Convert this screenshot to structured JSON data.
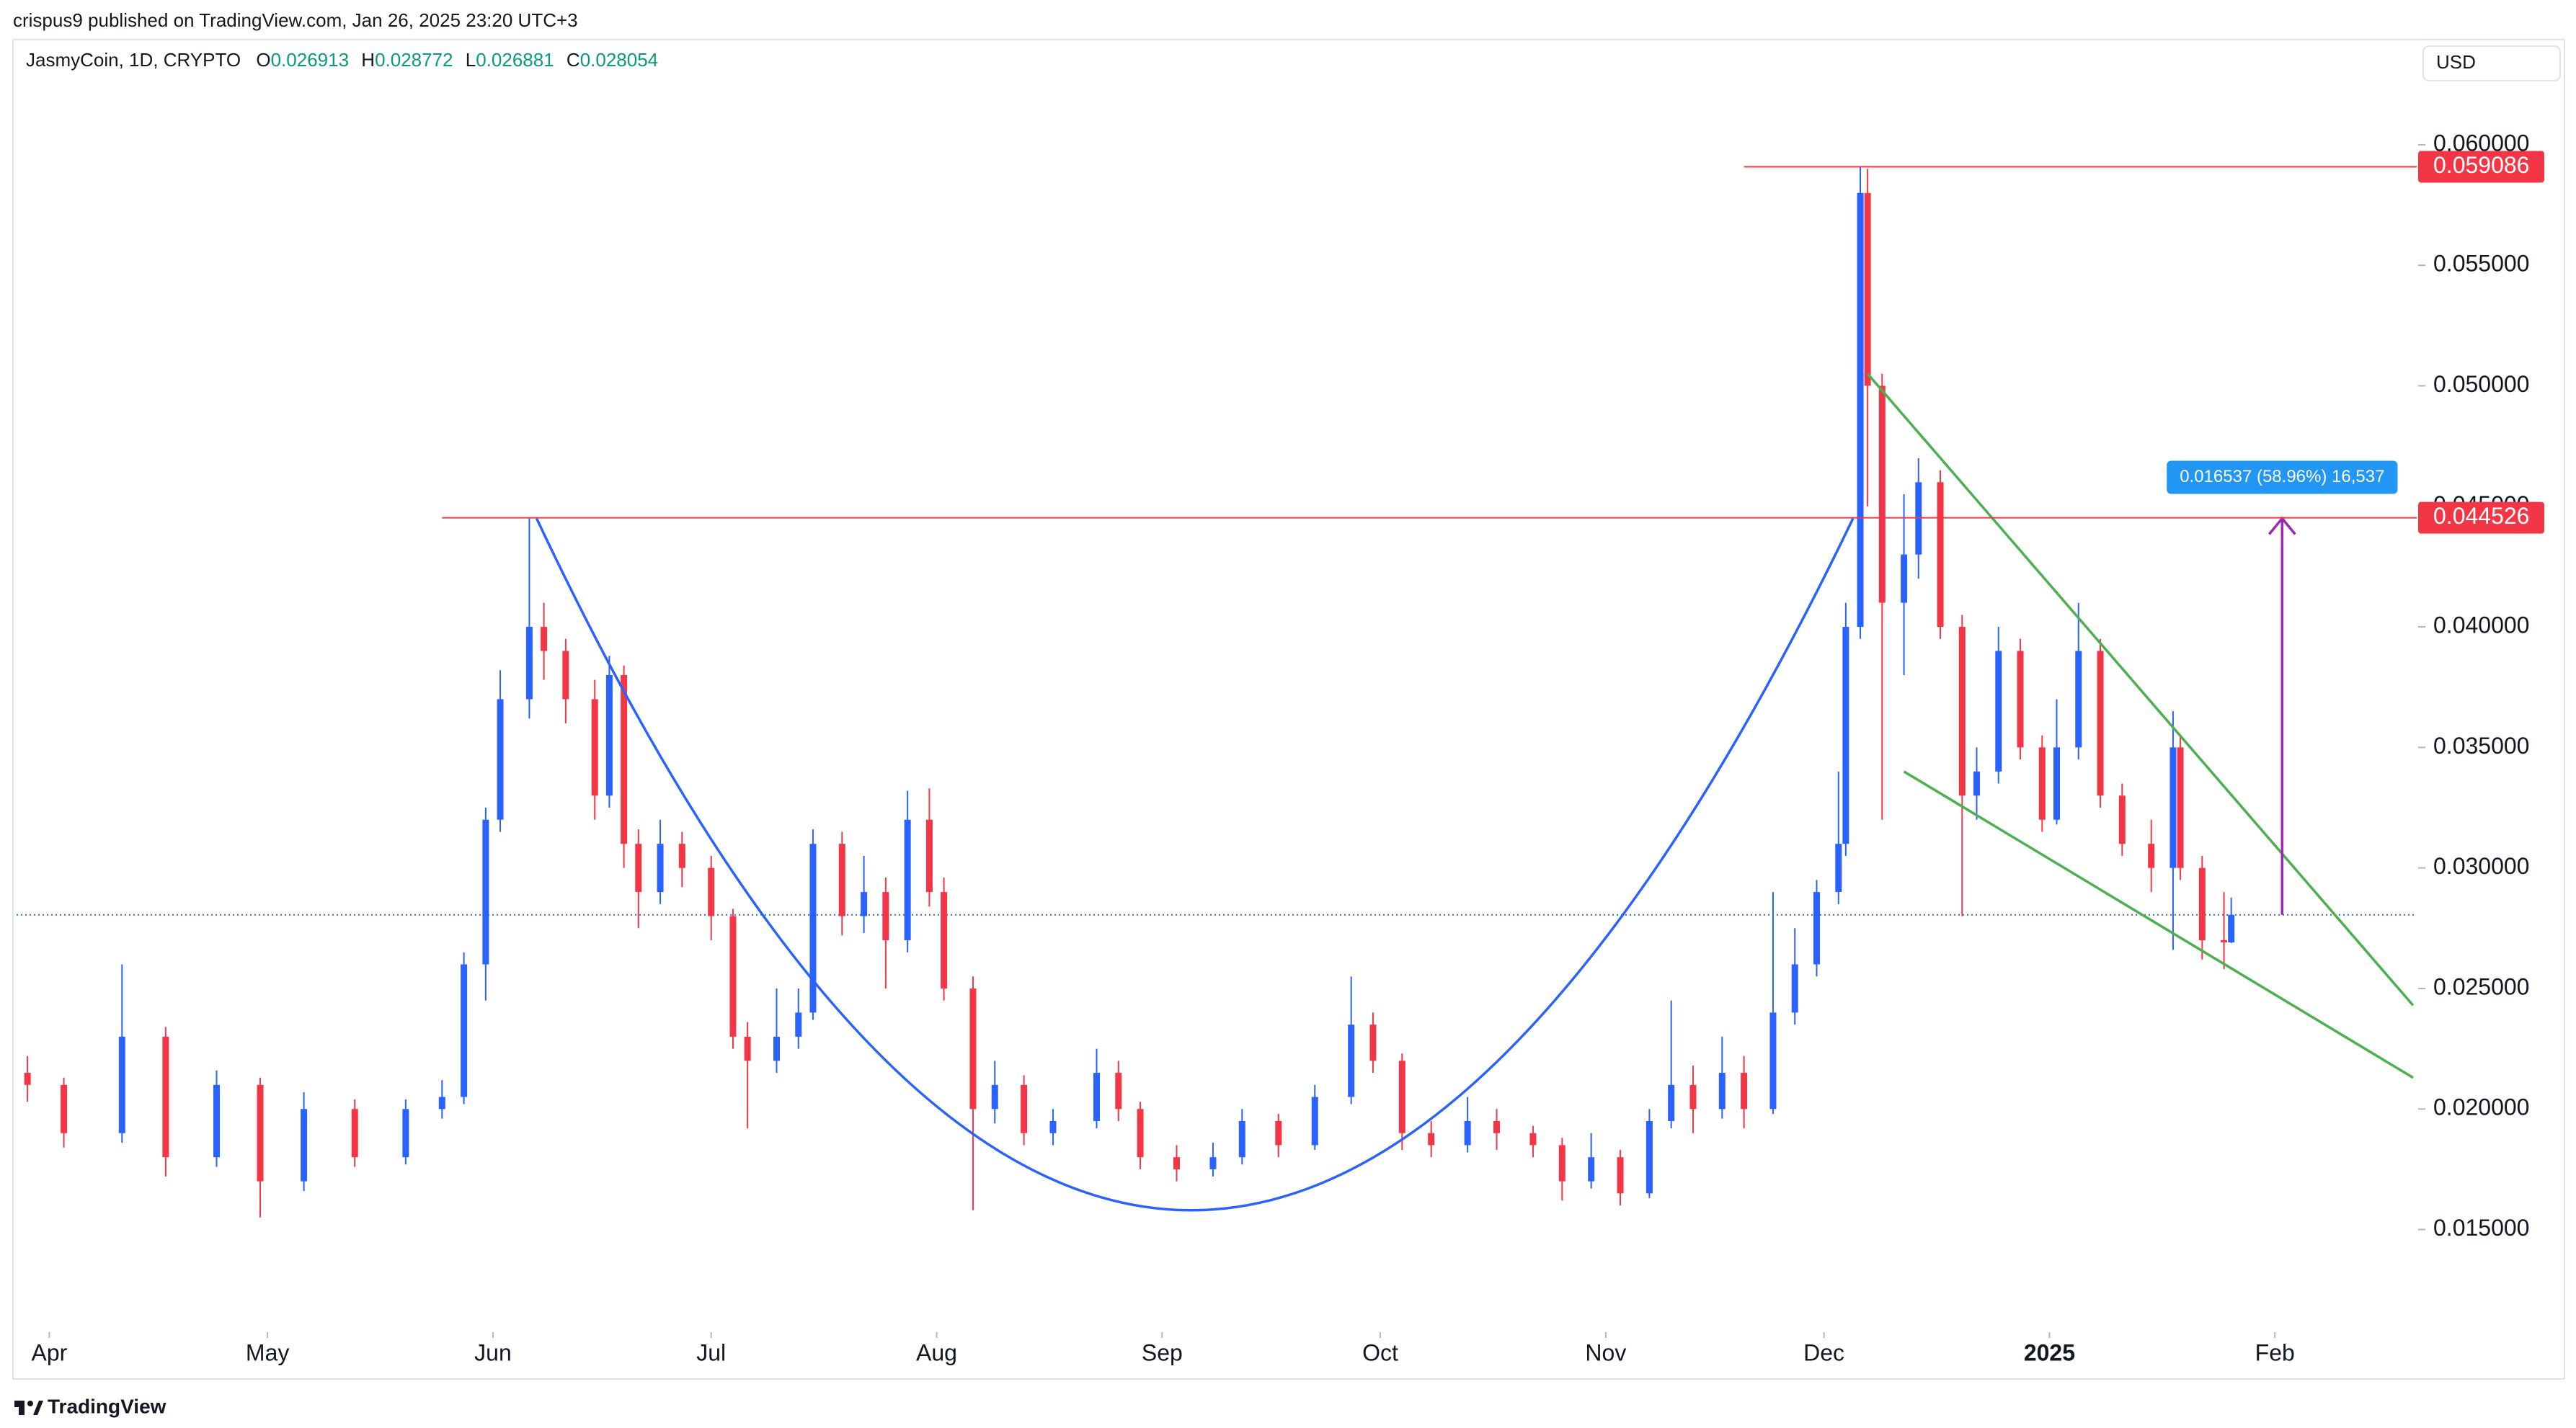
{
  "header": {
    "publisher": "crispus9 published on TradingView.com, Jan 26, 2025 23:20 UTC+3",
    "ohlc_labels": [
      "O",
      "H",
      "L",
      "C"
    ],
    "footer": "TradingView"
  },
  "chart_data": {
    "type": "candlestick",
    "title": "JasmyCoin, 1D, CRYPTO",
    "currency": "USD",
    "up_color": "#2962ff",
    "down_color": "#f23645",
    "x": [
      -3,
      2,
      10,
      16,
      23,
      29,
      35,
      42,
      49,
      54,
      57,
      60,
      62,
      66,
      68,
      71,
      75,
      77,
      79,
      81,
      84,
      87,
      91,
      94,
      96,
      100,
      103,
      105,
      109,
      112,
      115,
      118,
      121,
      123,
      127,
      130,
      134,
      138,
      144,
      147,
      150,
      155,
      160,
      164,
      169,
      174,
      179,
      182,
      186,
      190,
      195,
      199,
      204,
      208,
      212,
      216,
      220,
      223,
      226,
      230,
      233,
      237,
      240,
      243,
      246,
      247,
      249,
      250,
      252,
      255,
      257,
      260,
      263,
      265,
      268,
      271,
      274,
      276,
      279,
      282,
      285,
      289,
      292,
      293,
      296,
      299,
      300
    ],
    "open": [
      0.0215,
      0.021,
      0.019,
      0.023,
      0.018,
      0.021,
      0.017,
      0.02,
      0.018,
      0.02,
      0.0205,
      0.026,
      0.032,
      0.037,
      0.04,
      0.039,
      0.037,
      0.033,
      0.038,
      0.031,
      0.029,
      0.031,
      0.03,
      0.028,
      0.023,
      0.022,
      0.023,
      0.024,
      0.031,
      0.028,
      0.029,
      0.027,
      0.032,
      0.029,
      0.025,
      0.02,
      0.021,
      0.019,
      0.0195,
      0.0215,
      0.02,
      0.018,
      0.0175,
      0.018,
      0.0195,
      0.0185,
      0.0205,
      0.0235,
      0.022,
      0.019,
      0.0185,
      0.0195,
      0.019,
      0.0185,
      0.017,
      0.018,
      0.0165,
      0.0195,
      0.021,
      0.02,
      0.0215,
      0.02,
      0.024,
      0.026,
      0.029,
      0.031,
      0.04,
      0.058,
      0.05,
      0.041,
      0.043,
      0.046,
      0.04,
      0.033,
      0.034,
      0.039,
      0.035,
      0.032,
      0.035,
      0.039,
      0.033,
      0.031,
      0.03,
      0.035,
      0.03,
      0.027,
      0.026913
    ],
    "high": [
      0.0222,
      0.0213,
      0.026,
      0.0234,
      0.0216,
      0.0213,
      0.0207,
      0.0204,
      0.0204,
      0.0212,
      0.0265,
      0.0325,
      0.0382,
      0.0445,
      0.041,
      0.0395,
      0.0378,
      0.0388,
      0.0384,
      0.0316,
      0.032,
      0.0315,
      0.0305,
      0.0283,
      0.0236,
      0.025,
      0.025,
      0.0316,
      0.0315,
      0.0305,
      0.0296,
      0.0332,
      0.0333,
      0.0296,
      0.0255,
      0.022,
      0.0214,
      0.02,
      0.0225,
      0.022,
      0.0203,
      0.0185,
      0.0186,
      0.02,
      0.0198,
      0.021,
      0.0255,
      0.024,
      0.0223,
      0.0195,
      0.0205,
      0.02,
      0.0193,
      0.0188,
      0.019,
      0.0183,
      0.02,
      0.0245,
      0.0218,
      0.023,
      0.0222,
      0.029,
      0.0275,
      0.0295,
      0.034,
      0.041,
      0.0591,
      0.059,
      0.0505,
      0.0455,
      0.047,
      0.0465,
      0.0405,
      0.035,
      0.04,
      0.0395,
      0.0355,
      0.037,
      0.041,
      0.0395,
      0.0335,
      0.032,
      0.0365,
      0.0355,
      0.0305,
      0.029,
      0.028772
    ],
    "low": [
      0.0203,
      0.0184,
      0.0186,
      0.0172,
      0.0176,
      0.0155,
      0.0166,
      0.0176,
      0.0177,
      0.0196,
      0.0202,
      0.0245,
      0.0315,
      0.0362,
      0.0378,
      0.036,
      0.032,
      0.0325,
      0.03,
      0.0275,
      0.0285,
      0.0292,
      0.027,
      0.0225,
      0.0192,
      0.0215,
      0.0225,
      0.0237,
      0.0272,
      0.0273,
      0.025,
      0.0265,
      0.0284,
      0.0245,
      0.0158,
      0.0194,
      0.0185,
      0.0185,
      0.0192,
      0.0195,
      0.0175,
      0.017,
      0.0172,
      0.0177,
      0.018,
      0.0183,
      0.0202,
      0.0215,
      0.0183,
      0.018,
      0.0182,
      0.0183,
      0.018,
      0.0162,
      0.0167,
      0.016,
      0.0163,
      0.0192,
      0.019,
      0.0196,
      0.0192,
      0.0198,
      0.0235,
      0.0255,
      0.0285,
      0.0305,
      0.0395,
      0.045,
      0.032,
      0.038,
      0.042,
      0.0395,
      0.028,
      0.032,
      0.0335,
      0.0345,
      0.0315,
      0.0318,
      0.0345,
      0.0325,
      0.0305,
      0.029,
      0.0266,
      0.0295,
      0.0262,
      0.0258,
      0.026881
    ],
    "close": [
      0.021,
      0.019,
      0.023,
      0.018,
      0.021,
      0.017,
      0.02,
      0.018,
      0.02,
      0.0205,
      0.026,
      0.032,
      0.037,
      0.04,
      0.039,
      0.037,
      0.033,
      0.038,
      0.031,
      0.029,
      0.031,
      0.03,
      0.028,
      0.023,
      0.022,
      0.023,
      0.024,
      0.031,
      0.028,
      0.029,
      0.027,
      0.032,
      0.029,
      0.025,
      0.02,
      0.021,
      0.019,
      0.0195,
      0.0215,
      0.02,
      0.018,
      0.0175,
      0.018,
      0.0195,
      0.0185,
      0.0205,
      0.0235,
      0.022,
      0.019,
      0.0185,
      0.0195,
      0.019,
      0.0185,
      0.017,
      0.018,
      0.0165,
      0.0195,
      0.021,
      0.02,
      0.0215,
      0.02,
      0.024,
      0.026,
      0.029,
      0.031,
      0.04,
      0.058,
      0.05,
      0.041,
      0.043,
      0.046,
      0.04,
      0.033,
      0.034,
      0.039,
      0.035,
      0.032,
      0.035,
      0.039,
      0.033,
      0.031,
      0.03,
      0.035,
      0.03,
      0.027,
      0.026913,
      0.028054
    ],
    "xlim": [
      -4.5,
      325.5
    ],
    "ylim": [
      0.0114,
      0.0643
    ],
    "xticks": [
      {
        "value": 0,
        "label": "Apr"
      },
      {
        "value": 30,
        "label": "May"
      },
      {
        "value": 61,
        "label": "Jun"
      },
      {
        "value": 91,
        "label": "Jul"
      },
      {
        "value": 122,
        "label": "Aug"
      },
      {
        "value": 153,
        "label": "Sep"
      },
      {
        "value": 183,
        "label": "Oct"
      },
      {
        "value": 214,
        "label": "Nov"
      },
      {
        "value": 244,
        "label": "Dec"
      },
      {
        "value": 275,
        "label": "2025"
      },
      {
        "value": 306,
        "label": "Feb"
      }
    ],
    "yticks": [
      {
        "value": 0.015,
        "label": "0.015000"
      },
      {
        "value": 0.02,
        "label": "0.020000"
      },
      {
        "value": 0.025,
        "label": "0.025000"
      },
      {
        "value": 0.03,
        "label": "0.030000"
      },
      {
        "value": 0.035,
        "label": "0.035000"
      },
      {
        "value": 0.04,
        "label": "0.040000"
      },
      {
        "value": 0.045,
        "label": "0.045000"
      },
      {
        "value": 0.05,
        "label": "0.050000"
      },
      {
        "value": 0.055,
        "label": "0.055000"
      },
      {
        "value": 0.06,
        "label": "0.060000"
      }
    ],
    "levels": [
      {
        "value": 0.059086,
        "from": 233,
        "color": "#f23645"
      },
      {
        "value": 0.044526,
        "from": 54,
        "color": "#f23645"
      }
    ],
    "drawings": [
      {
        "kind": "curve",
        "color": "#2962ff",
        "points": [
          [
            67,
            0.0445
          ],
          [
            157,
            0.0158
          ],
          [
            248,
            0.0445
          ]
        ]
      },
      {
        "kind": "line",
        "color": "#4caf50",
        "points": [
          [
            250,
            0.0505
          ],
          [
            325,
            0.0243
          ]
        ]
      },
      {
        "kind": "line",
        "color": "#4caf50",
        "points": [
          [
            255,
            0.034
          ],
          [
            325,
            0.0213
          ]
        ]
      },
      {
        "kind": "arrow",
        "color": "#9c27b0",
        "points": [
          [
            307,
            0.028054
          ],
          [
            307,
            0.0445
          ]
        ],
        "label": "0.016537 (58.96%) 16,537",
        "label_color": "#2196f3"
      }
    ]
  }
}
